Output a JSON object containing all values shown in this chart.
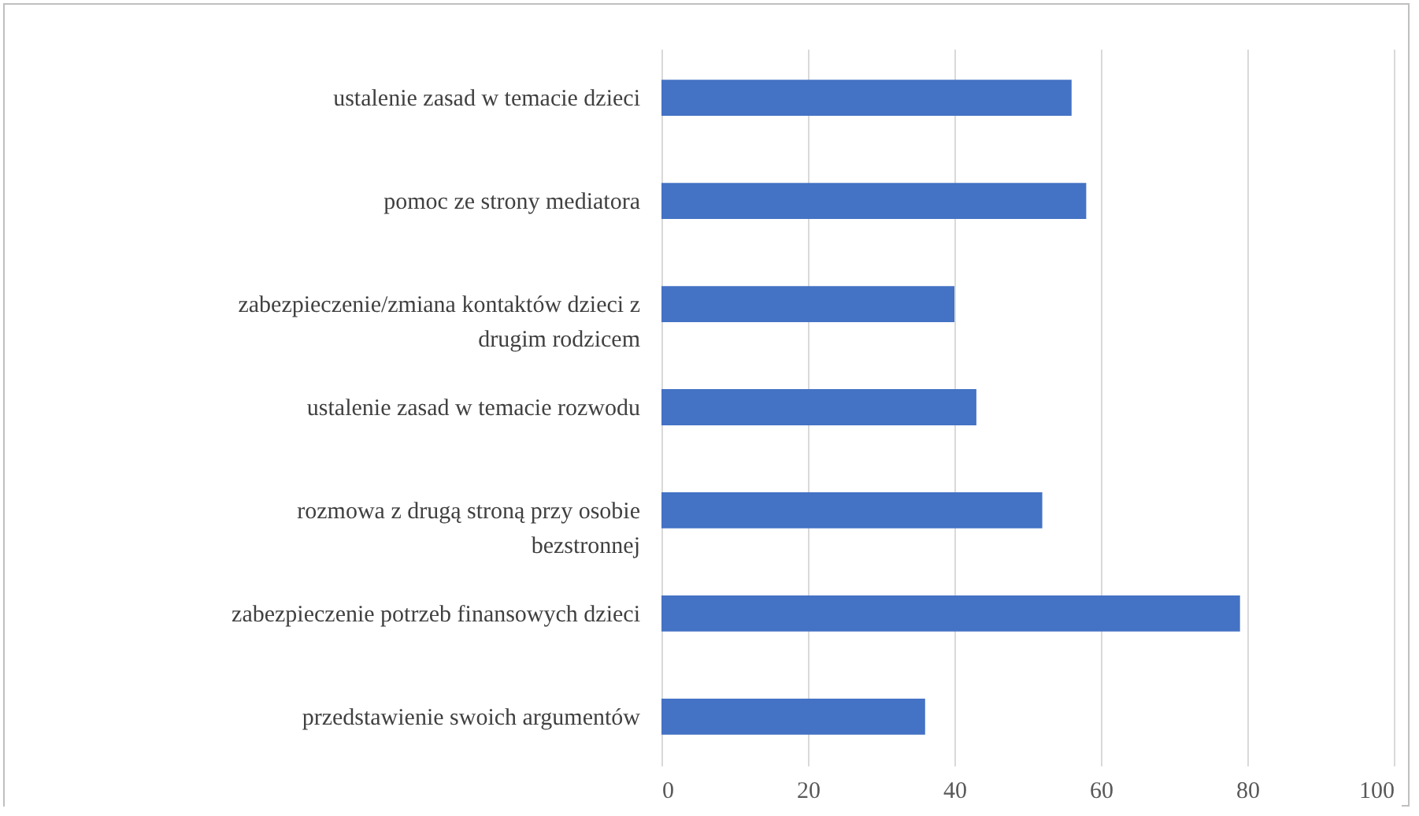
{
  "chart_data": {
    "type": "bar",
    "orientation": "horizontal",
    "categories": [
      "ustalenie zasad w temacie dzieci",
      "pomoc ze strony mediatora",
      "zabezpieczenie/zmiana kontaktów dzieci z drugim rodzicem",
      "ustalenie zasad w temacie rozwodu",
      "rozmowa z drugą stroną przy osobie bezstronnej",
      "zabezpieczenie potrzeb finansowych dzieci",
      "przedstawienie swoich argumentów"
    ],
    "values": [
      56,
      58,
      40,
      43,
      52,
      79,
      36
    ],
    "color": "#4472c4",
    "xlim": [
      0,
      100
    ],
    "xticks": [
      0,
      20,
      40,
      60,
      80,
      100
    ],
    "grid": "x"
  }
}
